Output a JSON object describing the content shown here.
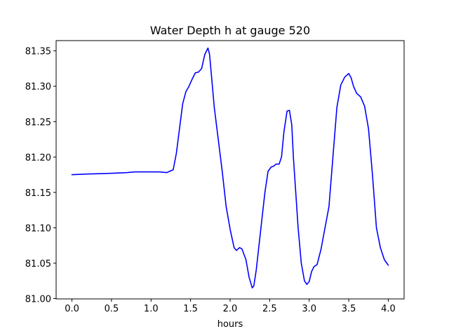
{
  "chart_data": {
    "type": "line",
    "title": "Water Depth h at gauge 520",
    "xlabel": "hours",
    "ylabel": "",
    "xlim": [
      -0.2,
      4.2
    ],
    "ylim": [
      80.9995,
      81.3645
    ],
    "xticks": [
      0.0,
      0.5,
      1.0,
      1.5,
      2.0,
      2.5,
      3.0,
      3.5,
      4.0
    ],
    "xtick_labels": [
      "0.0",
      "0.5",
      "1.0",
      "1.5",
      "2.0",
      "2.5",
      "3.0",
      "3.5",
      "4.0"
    ],
    "yticks": [
      81.0,
      81.05,
      81.1,
      81.15,
      81.2,
      81.25,
      81.3,
      81.35
    ],
    "ytick_labels": [
      "81.00",
      "81.05",
      "81.10",
      "81.15",
      "81.20",
      "81.25",
      "81.30",
      "81.35"
    ],
    "grid": false,
    "series": [
      {
        "color": "#0000ff",
        "x": [
          0.0,
          0.2,
          0.5,
          0.7,
          0.8,
          1.0,
          1.1,
          1.2,
          1.28,
          1.32,
          1.36,
          1.4,
          1.44,
          1.48,
          1.52,
          1.56,
          1.6,
          1.64,
          1.68,
          1.72,
          1.74,
          1.76,
          1.8,
          1.85,
          1.9,
          1.95,
          2.0,
          2.05,
          2.08,
          2.12,
          2.15,
          2.2,
          2.24,
          2.28,
          2.3,
          2.33,
          2.36,
          2.4,
          2.44,
          2.48,
          2.52,
          2.55,
          2.58,
          2.62,
          2.65,
          2.68,
          2.72,
          2.75,
          2.78,
          2.8,
          2.83,
          2.86,
          2.9,
          2.94,
          2.97,
          3.0,
          3.03,
          3.06,
          3.1,
          3.15,
          3.2,
          3.25,
          3.3,
          3.35,
          3.4,
          3.45,
          3.5,
          3.53,
          3.56,
          3.6,
          3.65,
          3.7,
          3.75,
          3.8,
          3.85,
          3.9,
          3.95,
          4.0
        ],
        "y": [
          81.175,
          81.176,
          81.177,
          81.178,
          81.179,
          81.179,
          81.179,
          81.178,
          81.182,
          81.205,
          81.24,
          81.275,
          81.292,
          81.3,
          81.31,
          81.319,
          81.32,
          81.325,
          81.345,
          81.354,
          81.345,
          81.32,
          81.27,
          81.225,
          81.18,
          81.13,
          81.098,
          81.072,
          81.068,
          81.072,
          81.07,
          81.055,
          81.03,
          81.015,
          81.018,
          81.04,
          81.07,
          81.11,
          81.15,
          81.18,
          81.186,
          81.187,
          81.19,
          81.19,
          81.2,
          81.235,
          81.265,
          81.266,
          81.245,
          81.2,
          81.15,
          81.1,
          81.05,
          81.025,
          81.02,
          81.024,
          81.038,
          81.045,
          81.048,
          81.07,
          81.1,
          81.13,
          81.2,
          81.27,
          81.302,
          81.313,
          81.318,
          81.312,
          81.3,
          81.29,
          81.285,
          81.272,
          81.24,
          81.175,
          81.1,
          81.072,
          81.055,
          81.047
        ]
      }
    ]
  }
}
